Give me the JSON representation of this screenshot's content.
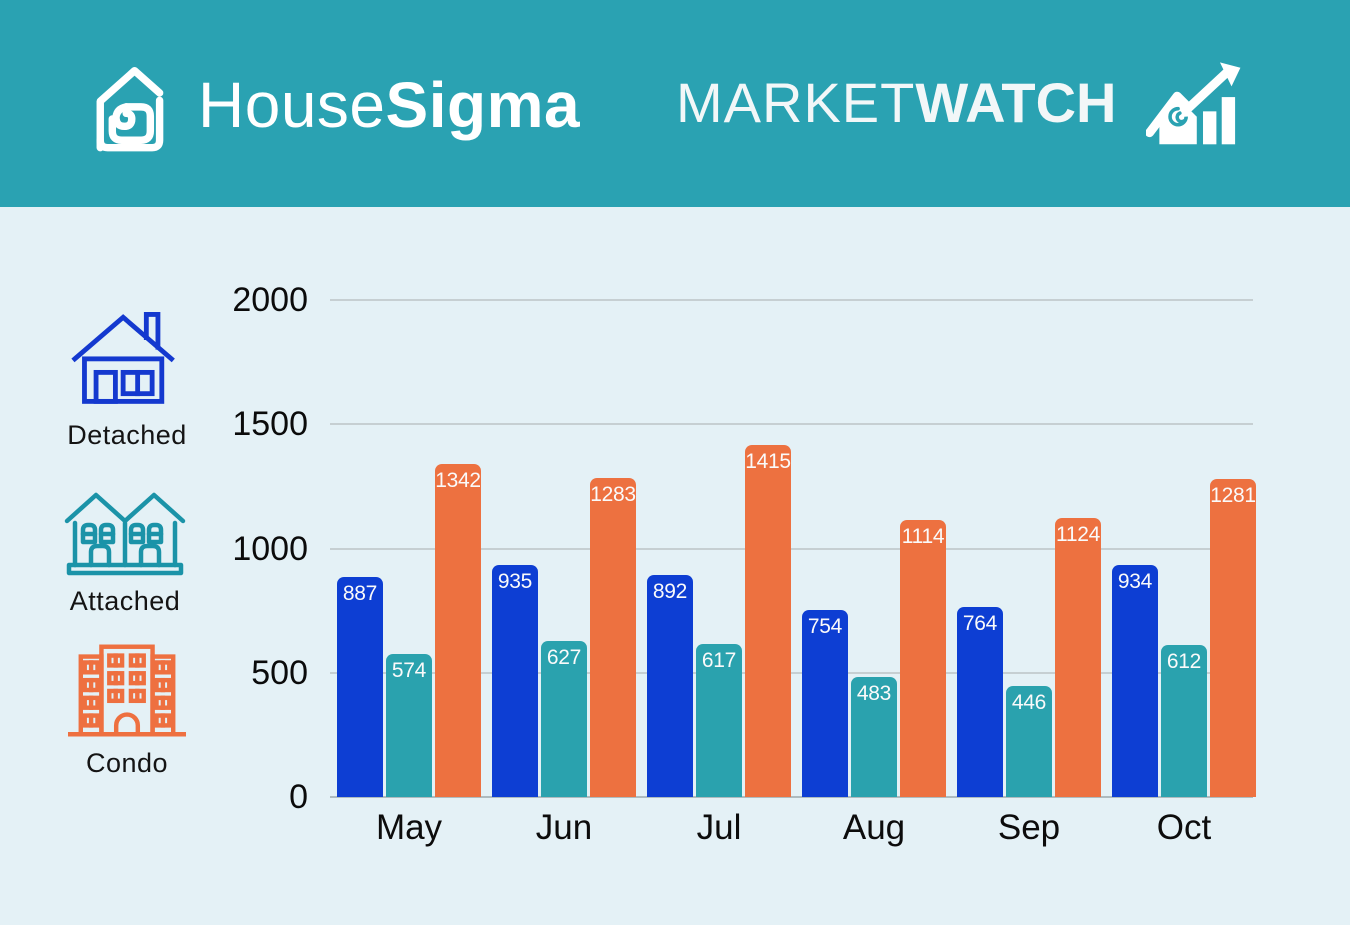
{
  "colors": {
    "header_bg": "#2aa2b2",
    "page_bg": "#e4f1f6",
    "grid": "#c6cfd2",
    "detached": "#1439cf",
    "attached": "#1b93a8",
    "condo": "#ee7040",
    "text": "#0c0c0c",
    "header_text": "#ffffff"
  },
  "header": {
    "brand": {
      "name_regular": "House",
      "name_bold": "Sigma"
    },
    "product": {
      "regular": "MARKET",
      "bold": "WATCH"
    },
    "logo_icon": "housesigma-logo-icon",
    "growth_icon": "market-growth-icon"
  },
  "legend": {
    "items": [
      {
        "label": "Detached",
        "icon": "detached-house-icon",
        "color": "#1439cf"
      },
      {
        "label": "Attached",
        "icon": "attached-house-icon",
        "color": "#1b93a8"
      },
      {
        "label": "Condo",
        "icon": "condo-building-icon",
        "color": "#ee7040"
      }
    ]
  },
  "chart_data": {
    "type": "bar",
    "categories": [
      "May",
      "Jun",
      "Jul",
      "Aug",
      "Sep",
      "Oct"
    ],
    "series": [
      {
        "name": "Detached",
        "color": "#0d3ed3",
        "values": [
          887,
          935,
          892,
          754,
          764,
          934
        ]
      },
      {
        "name": "Attached",
        "color": "#2aa2ae",
        "values": [
          574,
          627,
          617,
          483,
          446,
          612
        ]
      },
      {
        "name": "Condo",
        "color": "#ed7140",
        "values": [
          1342,
          1283,
          1415,
          1114,
          1124,
          1281
        ]
      }
    ],
    "ylim": [
      0,
      2000
    ],
    "yticks": [
      0,
      500,
      1000,
      1500,
      2000
    ],
    "grid": true,
    "legend_position": "left",
    "value_labels": "inside-top",
    "title": "",
    "xlabel": "",
    "ylabel": ""
  }
}
